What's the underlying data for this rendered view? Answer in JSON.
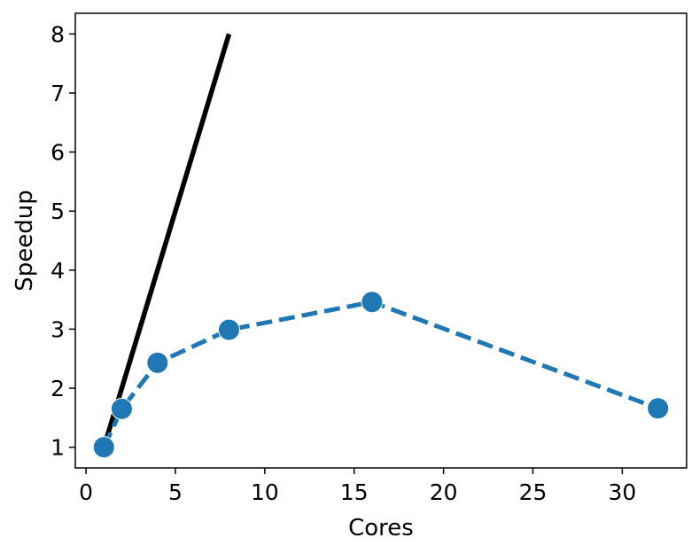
{
  "chart_data": {
    "type": "line",
    "xlabel": "Cores",
    "ylabel": "Speedup",
    "xlim": [
      -0.6,
      33.6
    ],
    "ylim": [
      0.65,
      8.35
    ],
    "grid": false,
    "xticks": [
      0,
      5,
      10,
      15,
      20,
      25,
      30
    ],
    "yticks": [
      1,
      2,
      3,
      4,
      5,
      6,
      7,
      8
    ],
    "xtick_labels": [
      "0",
      "5",
      "10",
      "15",
      "20",
      "25",
      "30"
    ],
    "ytick_labels": [
      "1",
      "2",
      "3",
      "4",
      "5",
      "6",
      "7",
      "8"
    ],
    "series": [
      {
        "style": "solid",
        "color": "#000000",
        "marker": "none",
        "x": [
          1,
          8
        ],
        "y": [
          1,
          8
        ]
      },
      {
        "style": "dashed",
        "color": "#1f77b4",
        "marker": "circle",
        "x": [
          1,
          2,
          4,
          8,
          16,
          32
        ],
        "y": [
          1.0,
          1.65,
          2.43,
          2.99,
          3.46,
          1.66
        ]
      }
    ]
  }
}
